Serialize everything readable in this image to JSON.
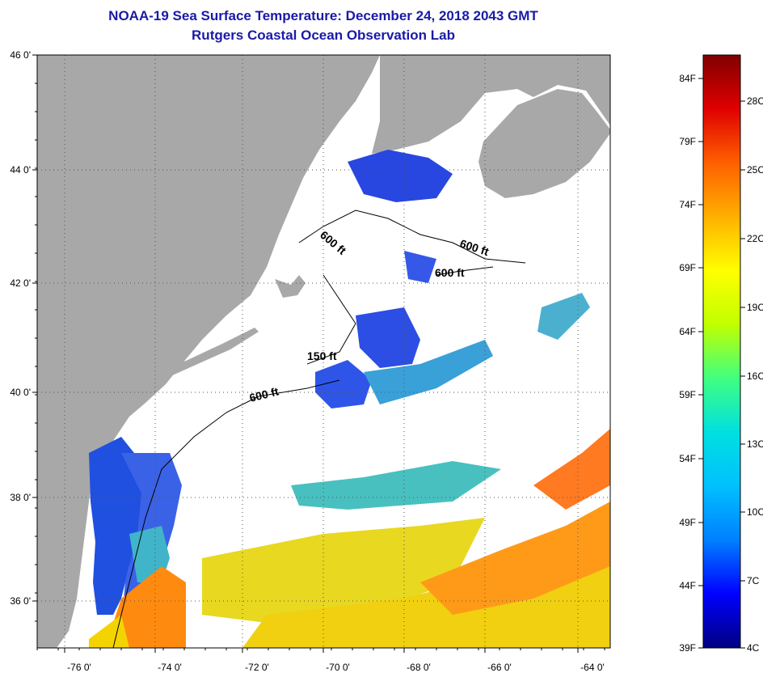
{
  "title": "NOAA-19 Sea Surface Temperature:  December 24, 2018 2043 GMT",
  "subtitle": "Rutgers Coastal Ocean Observation Lab",
  "map": {
    "lat_ticks": [
      "46 0'",
      "44 0'",
      "42 0'",
      "40 0'",
      "38 0'",
      "36 0'"
    ],
    "lon_ticks": [
      "-76 0'",
      "-74 0'",
      "-72 0'",
      "-70 0'",
      "-68 0'",
      "-66 0'",
      "-64 0'"
    ],
    "contour_labels": [
      "600 ft",
      "600 ft",
      "600 ft",
      "150 ft",
      "600 ft"
    ],
    "colors": {
      "land": "#a8a8a8",
      "cloud": "#ffffff",
      "contour": "#000000"
    }
  },
  "colorbar": {
    "fahrenheit_ticks": [
      "84F",
      "79F",
      "74F",
      "69F",
      "64F",
      "59F",
      "54F",
      "49F",
      "44F",
      "39F"
    ],
    "celsius_ticks": [
      "28C",
      "25C",
      "22C",
      "19C",
      "16C",
      "13C",
      "10C",
      "7C",
      "4C"
    ],
    "gradient": [
      "#000080",
      "#0000ff",
      "#0080ff",
      "#00c0ff",
      "#00e0e0",
      "#40ff80",
      "#c0ff00",
      "#ffff00",
      "#ffb000",
      "#ff6000",
      "#e00000",
      "#800000"
    ]
  }
}
